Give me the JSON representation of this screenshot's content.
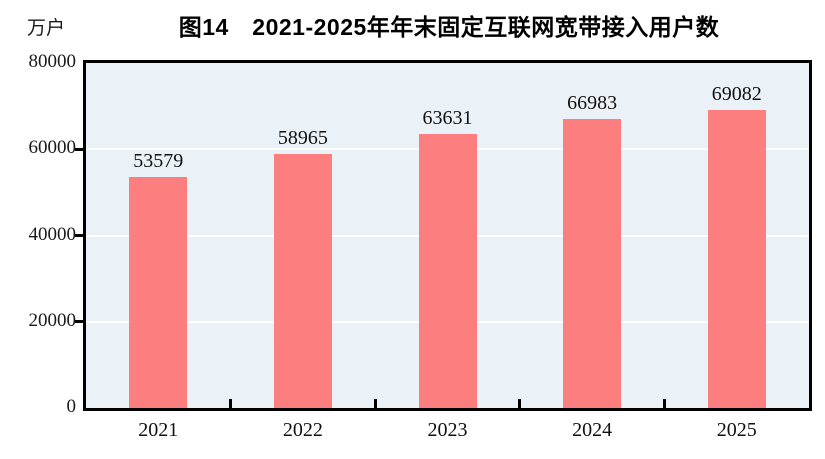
{
  "chart_data": {
    "type": "bar",
    "title": "图14　2021-2025年年末固定互联网宽带接入用户数",
    "ylabel": "万户",
    "xlabel": "",
    "categories": [
      "2021",
      "2022",
      "2023",
      "2024",
      "2025"
    ],
    "values": [
      53579,
      58965,
      63631,
      66983,
      69082
    ],
    "value_labels": [
      "53579",
      "58965",
      "63631",
      "66983",
      "69082"
    ],
    "ylim": [
      0,
      80000
    ],
    "y_ticks": [
      0,
      20000,
      40000,
      60000,
      80000
    ],
    "y_tick_labels": [
      "0",
      "20000",
      "40000",
      "60000",
      "80000"
    ],
    "grid": "horizontal white lines at 20000/40000/60000",
    "legend": "none",
    "colors": {
      "bar_fill": "#fc7e7f",
      "plot_background": "#ebf2f7",
      "gridline": "#ffffff",
      "axis_border": "#000000",
      "text": "#111111"
    }
  }
}
